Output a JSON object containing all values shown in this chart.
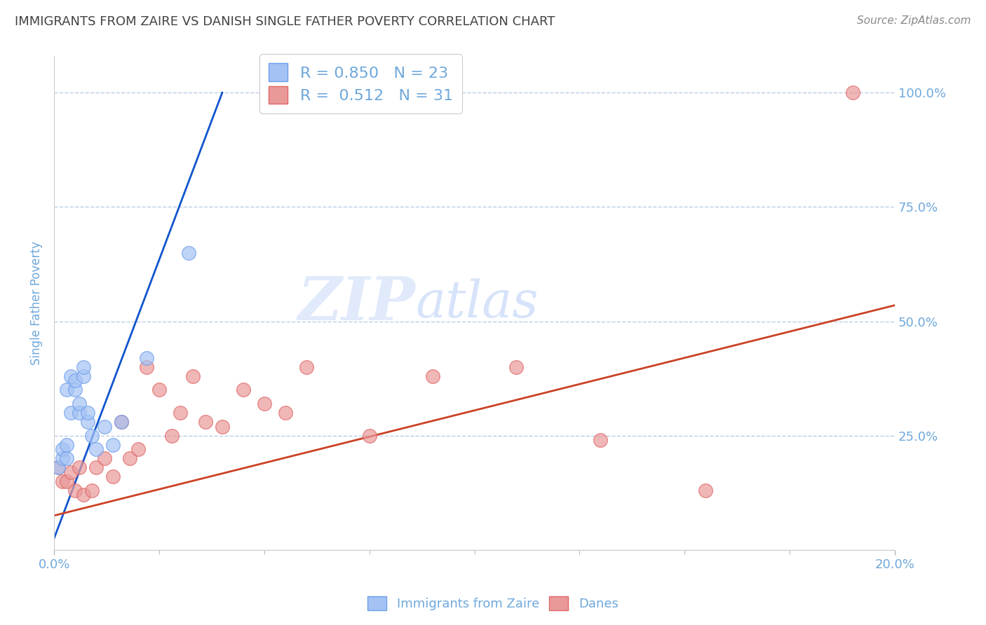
{
  "title": "IMMIGRANTS FROM ZAIRE VS DANISH SINGLE FATHER POVERTY CORRELATION CHART",
  "source": "Source: ZipAtlas.com",
  "ylabel": "Single Father Poverty",
  "xlim": [
    0.0,
    0.2
  ],
  "ylim": [
    0.0,
    1.08
  ],
  "yticks": [
    0.0,
    0.25,
    0.5,
    0.75,
    1.0
  ],
  "ytick_labels": [
    "",
    "25.0%",
    "50.0%",
    "75.0%",
    "100.0%"
  ],
  "xticks": [
    0.0,
    0.2
  ],
  "xtick_labels": [
    "0.0%",
    "20.0%"
  ],
  "minor_xticks": [
    0.025,
    0.05,
    0.075,
    0.1,
    0.125,
    0.15,
    0.175
  ],
  "r_blue": 0.85,
  "n_blue": 23,
  "r_pink": 0.512,
  "n_pink": 31,
  "blue_scatter_color": "#a4c2f4",
  "blue_scatter_edge": "#6d9eeb",
  "pink_scatter_color": "#ea9999",
  "pink_scatter_edge": "#e06666",
  "blue_line_color": "#1155cc",
  "pink_line_color": "#cc4125",
  "title_color": "#434343",
  "axis_label_color": "#6fa8dc",
  "grid_color": "#b4c7e7",
  "legend_label_blue": "Immigrants from Zaire",
  "legend_label_pink": "Danes",
  "blue_scatter_x": [
    0.001,
    0.002,
    0.002,
    0.003,
    0.003,
    0.003,
    0.004,
    0.004,
    0.005,
    0.005,
    0.006,
    0.006,
    0.007,
    0.007,
    0.008,
    0.008,
    0.009,
    0.01,
    0.012,
    0.014,
    0.016,
    0.022,
    0.032
  ],
  "blue_scatter_y": [
    0.18,
    0.2,
    0.22,
    0.2,
    0.23,
    0.35,
    0.3,
    0.38,
    0.35,
    0.37,
    0.3,
    0.32,
    0.38,
    0.4,
    0.28,
    0.3,
    0.25,
    0.22,
    0.27,
    0.23,
    0.28,
    0.42,
    0.65
  ],
  "pink_scatter_x": [
    0.001,
    0.002,
    0.003,
    0.004,
    0.005,
    0.006,
    0.007,
    0.009,
    0.01,
    0.012,
    0.014,
    0.016,
    0.018,
    0.02,
    0.022,
    0.025,
    0.028,
    0.03,
    0.033,
    0.036,
    0.04,
    0.045,
    0.05,
    0.055,
    0.06,
    0.075,
    0.09,
    0.11,
    0.13,
    0.155,
    0.19
  ],
  "pink_scatter_y": [
    0.18,
    0.15,
    0.15,
    0.17,
    0.13,
    0.18,
    0.12,
    0.13,
    0.18,
    0.2,
    0.16,
    0.28,
    0.2,
    0.22,
    0.4,
    0.35,
    0.25,
    0.3,
    0.38,
    0.28,
    0.27,
    0.35,
    0.32,
    0.3,
    0.4,
    0.25,
    0.38,
    0.4,
    0.24,
    0.13,
    1.0
  ],
  "blue_line_x": [
    0.0,
    0.04
  ],
  "blue_line_y": [
    0.025,
    1.0
  ],
  "pink_line_x": [
    0.0,
    0.2
  ],
  "pink_line_y": [
    0.075,
    0.535
  ]
}
